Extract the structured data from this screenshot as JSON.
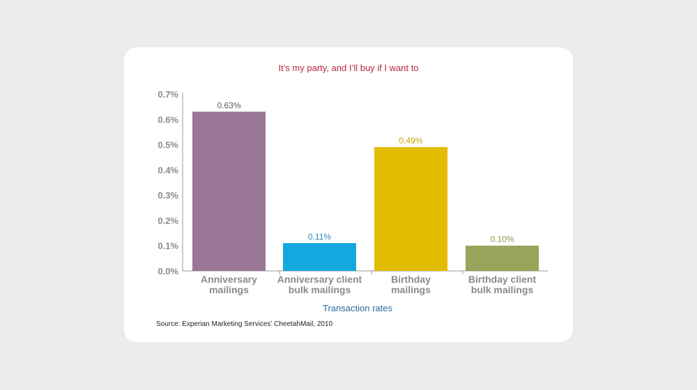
{
  "chart_data": {
    "type": "bar",
    "title": "It’s my party, and I’ll buy if I want to",
    "xlabel": "Transaction rates",
    "ylabel": "",
    "ylim": [
      0,
      0.7
    ],
    "y_ticks": [
      "0.0%",
      "0.1%",
      "0.2%",
      "0.3%",
      "0.4%",
      "0.5%",
      "0.6%",
      "0.7%"
    ],
    "y_tick_values": [
      0,
      0.1,
      0.2,
      0.3,
      0.4,
      0.5,
      0.6,
      0.7
    ],
    "categories": [
      [
        "Anniversary",
        "mailings"
      ],
      [
        "Anniversary client",
        "bulk mailings"
      ],
      [
        "Birthday",
        "mailings"
      ],
      [
        "Birthday client",
        "bulk mailings"
      ]
    ],
    "values": [
      0.63,
      0.11,
      0.49,
      0.1
    ],
    "data_labels": [
      "0.63%",
      "0.11%",
      "0.49%",
      "0.10%"
    ],
    "colors": [
      "#9a7796",
      "#14a8de",
      "#e2bc00",
      "#9aa35a"
    ],
    "label_colors": [
      "#5a5a5a",
      "#2a86b8",
      "#c9a400",
      "#8a944a"
    ],
    "grid": false,
    "legend": "none"
  },
  "source": "Source: Experian Marketing Services’ CheetahMail, 2010"
}
